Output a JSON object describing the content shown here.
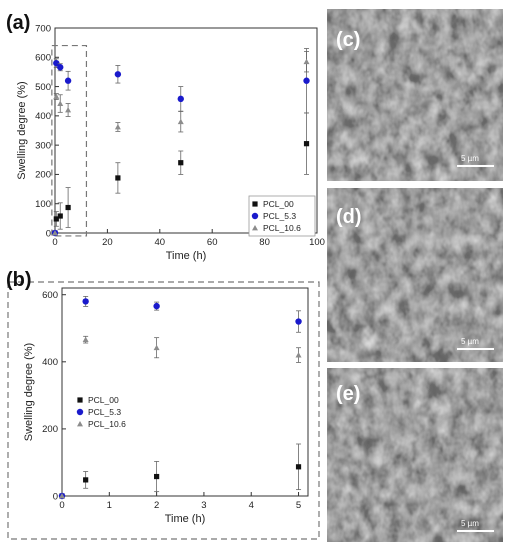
{
  "chart_data": [
    {
      "panel": "(a)",
      "type": "scatter",
      "xlabel": "Time (h)",
      "ylabel": "Swelling degree (%)",
      "xlim": [
        0,
        100
      ],
      "ylim": [
        0,
        700
      ],
      "xticks": [
        0,
        20,
        40,
        60,
        80,
        100
      ],
      "yticks": [
        0,
        100,
        200,
        300,
        400,
        500,
        600,
        700
      ],
      "legend_position": "bottom-right",
      "series": [
        {
          "name": "PCL_00",
          "marker": "square",
          "color": "#111111",
          "x": [
            0,
            0.5,
            2,
            5,
            24,
            48,
            96
          ],
          "y": [
            0,
            48,
            58,
            87,
            188,
            240,
            305
          ],
          "err": [
            0,
            25,
            45,
            68,
            52,
            40,
            105
          ]
        },
        {
          "name": "PCL_5.3",
          "marker": "circle",
          "color": "#1a1acc",
          "x": [
            0,
            0.5,
            2,
            5,
            24,
            48,
            96
          ],
          "y": [
            0,
            580,
            566,
            520,
            542,
            458,
            520
          ],
          "err": [
            0,
            15,
            12,
            32,
            30,
            42,
            110
          ]
        },
        {
          "name": "PCL_10.6",
          "marker": "triangle",
          "color": "#8c8c8c",
          "x": [
            0,
            0.5,
            2,
            5,
            24,
            48,
            96
          ],
          "y": [
            0,
            466,
            442,
            420,
            362,
            380,
            585
          ],
          "err": [
            0,
            10,
            30,
            22,
            15,
            35,
            35
          ]
        }
      ]
    },
    {
      "panel": "(b)",
      "type": "scatter",
      "xlabel": "Time (h)",
      "ylabel": "Swelling degree (%)",
      "xlim": [
        0,
        5.2
      ],
      "ylim": [
        0,
        620
      ],
      "xticks": [
        0,
        1,
        2,
        3,
        4,
        5
      ],
      "yticks": [
        0,
        200,
        400,
        600
      ],
      "legend_position": "left",
      "series": [
        {
          "name": "PCL_00",
          "marker": "square",
          "color": "#111111",
          "x": [
            0,
            0.5,
            2,
            5
          ],
          "y": [
            0,
            48,
            58,
            87
          ],
          "err": [
            0,
            25,
            45,
            68
          ]
        },
        {
          "name": "PCL_5.3",
          "marker": "circle",
          "color": "#1a1acc",
          "x": [
            0,
            0.5,
            2,
            5
          ],
          "y": [
            0,
            580,
            566,
            520
          ],
          "err": [
            0,
            15,
            12,
            32
          ]
        },
        {
          "name": "PCL_10.6",
          "marker": "triangle",
          "color": "#8c8c8c",
          "x": [
            0,
            0.5,
            2,
            5
          ],
          "y": [
            0,
            466,
            442,
            420
          ],
          "err": [
            0,
            10,
            30,
            22
          ]
        }
      ]
    }
  ],
  "sem_images": [
    {
      "label": "(c)",
      "scale_bar": "5 µm"
    },
    {
      "label": "(d)",
      "scale_bar": "5 µm"
    },
    {
      "label": "(e)",
      "scale_bar": "5 µm"
    }
  ]
}
